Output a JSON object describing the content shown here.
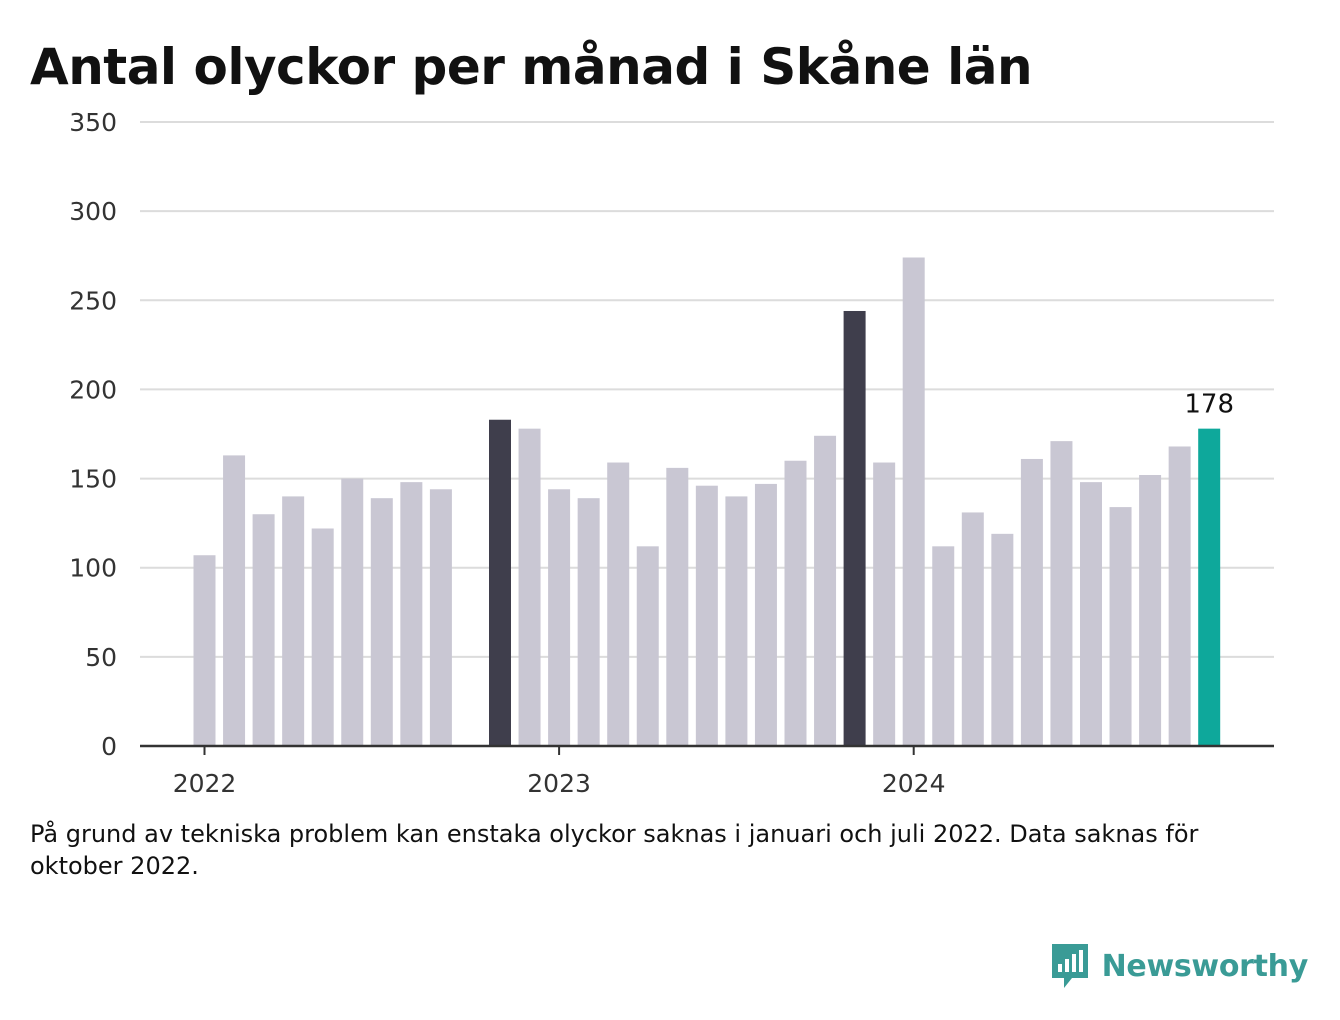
{
  "chart_data": {
    "type": "bar",
    "title": "Antal olyckor per månad i Skåne län",
    "subtitle": "",
    "xlabel": "",
    "ylabel": "",
    "ylim": [
      0,
      350
    ],
    "yticks": [
      0,
      50,
      100,
      150,
      200,
      250,
      300,
      350
    ],
    "x_ticks": [
      "2022",
      "2023",
      "2024"
    ],
    "categories": [
      "2022-01",
      "2022-02",
      "2022-03",
      "2022-04",
      "2022-05",
      "2022-06",
      "2022-07",
      "2022-08",
      "2022-09",
      "2022-10",
      "2022-11",
      "2022-12",
      "2023-01",
      "2023-02",
      "2023-03",
      "2023-04",
      "2023-05",
      "2023-06",
      "2023-07",
      "2023-08",
      "2023-09",
      "2023-10",
      "2023-11",
      "2023-12",
      "2024-01",
      "2024-02",
      "2024-03",
      "2024-04",
      "2024-05",
      "2024-06",
      "2024-07",
      "2024-08",
      "2024-09",
      "2024-10",
      "2024-11",
      "2024-12"
    ],
    "values": [
      107,
      163,
      130,
      140,
      122,
      150,
      139,
      148,
      144,
      null,
      183,
      178,
      144,
      139,
      159,
      112,
      156,
      146,
      140,
      147,
      160,
      174,
      244,
      159,
      274,
      112,
      131,
      119,
      161,
      171,
      148,
      134,
      152,
      168,
      178,
      null
    ],
    "highlight_dark": [
      "2022-11",
      "2023-11"
    ],
    "highlight_accent": [
      "2024-11"
    ],
    "labeled_point": {
      "category": "2024-11",
      "label": "178"
    },
    "grid": true,
    "legend": "none",
    "colors": {
      "bar_default": "#c9c7d3",
      "bar_dark": "#3f3e4c",
      "bar_accent": "#0ea89b",
      "grid": "#dcdcdc",
      "axis": "#333333"
    }
  },
  "footnote": "På grund av tekniska problem kan enstaka olyckor saknas i januari och juli 2022. Data saknas för oktober 2022.",
  "brand": {
    "name": "Newsworthy",
    "icon": "newsworthy-logo-icon",
    "color": "#3a9b96"
  }
}
